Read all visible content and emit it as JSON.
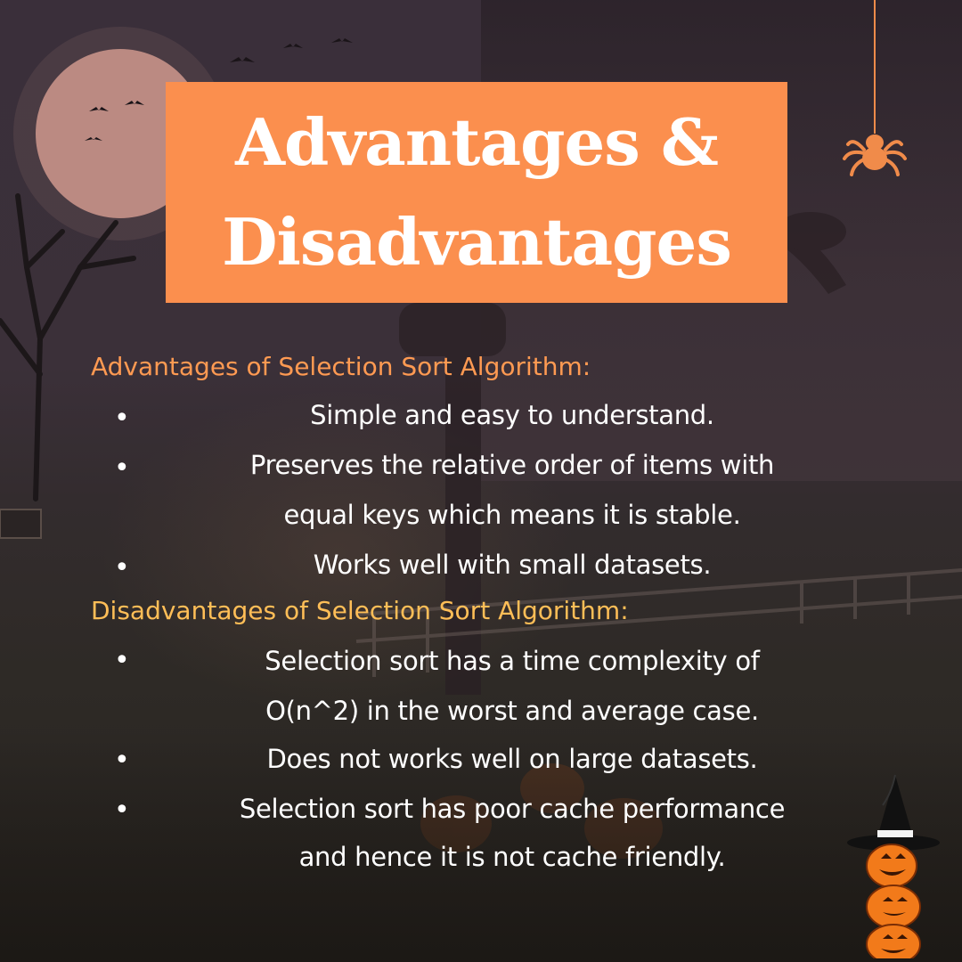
{
  "title": {
    "line1": "Advantages &",
    "line2": "Disadvantages"
  },
  "advantages": {
    "heading": "Advantages of Selection Sort Algorithm:",
    "items": [
      {
        "bullet": "•",
        "lines": [
          "Simple and easy to understand."
        ]
      },
      {
        "bullet": "•",
        "lines": [
          "Preserves the relative order of items with",
          "equal keys which means it is stable."
        ]
      },
      {
        "bullet": "•",
        "lines": [
          "Works well with small datasets."
        ]
      }
    ]
  },
  "disadvantages": {
    "heading": "Disadvantages of Selection Sort Algorithm:",
    "items": [
      {
        "bullet": "•",
        "lines": [
          "Selection sort has a time complexity of",
          "O(n^2) in the worst and average case."
        ]
      },
      {
        "bullet": "•",
        "lines": [
          "Does not works well on large datasets."
        ]
      },
      {
        "bullet": "•",
        "lines": [
          "Selection sort has poor cache performance",
          "and hence it is not cache friendly."
        ]
      }
    ]
  },
  "decorations": {
    "top_right": "spider-icon",
    "bottom_right": "pumpkin-stack-witch-hat-icon",
    "background": "halloween-night-scene"
  },
  "colors": {
    "title_bg": "#fb8f4e",
    "advantages_heading": "#ff9a52",
    "disadvantages_heading": "#ffbe57",
    "text": "#ffffff"
  }
}
